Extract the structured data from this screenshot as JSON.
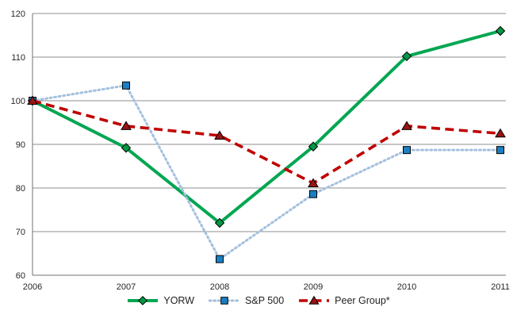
{
  "chart_data": {
    "type": "line",
    "title": "",
    "xlabel": "",
    "ylabel": "",
    "categories": [
      "2006",
      "2007",
      "2008",
      "2009",
      "2010",
      "2011"
    ],
    "y_ticks": [
      60,
      70,
      80,
      90,
      100,
      110,
      120
    ],
    "ylim": [
      60,
      120
    ],
    "grid": "horizontal",
    "legend_position": "bottom-center",
    "series": [
      {
        "name": "YORW",
        "line_style": "solid",
        "line_color": "#00A651",
        "marker": "diamond",
        "marker_color": "#009846",
        "marker_edge": "#000000",
        "values": [
          100,
          89.2,
          72.0,
          89.5,
          110.2,
          116.0
        ]
      },
      {
        "name": "S&P 500",
        "line_style": "dotted",
        "line_color": "#A3C0DE",
        "marker": "square",
        "marker_color": "#1B7FC4",
        "marker_edge": "#000000",
        "values": [
          100,
          103.5,
          63.7,
          78.6,
          88.7,
          88.7
        ]
      },
      {
        "name": "Peer Group*",
        "line_style": "dashed",
        "line_color": "#C00000",
        "marker": "triangle",
        "marker_color": "#9B1313",
        "marker_edge": "#000000",
        "values": [
          100,
          94.2,
          92.0,
          81.1,
          94.2,
          92.5
        ]
      }
    ]
  },
  "colors": {
    "background": "#FFFFFF",
    "grid": "#8F8F8F",
    "axis": "#707070",
    "tick_text": "#262626",
    "legend_text": "#1F1F1F"
  }
}
